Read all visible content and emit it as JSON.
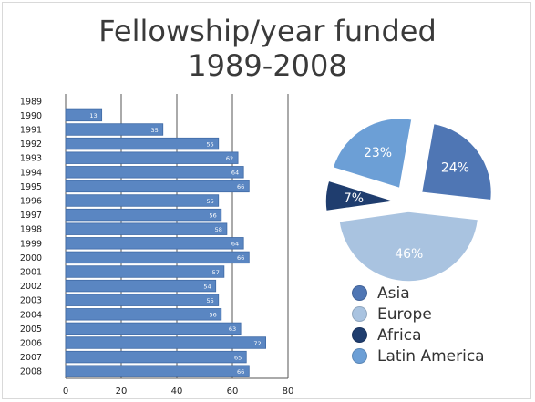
{
  "chart_data": [
    {
      "type": "bar",
      "orientation": "horizontal",
      "title": "Fellowship/year funded",
      "subtitle": "1989-2008",
      "categories": [
        "1989",
        "1990",
        "1991",
        "1992",
        "1993",
        "1994",
        "1995",
        "1996",
        "1997",
        "1998",
        "1999",
        "2000",
        "2001",
        "2002",
        "2003",
        "2004",
        "2005",
        "2006",
        "2007",
        "2008"
      ],
      "values": [
        0,
        13,
        35,
        55,
        62,
        64,
        66,
        55,
        56,
        58,
        64,
        66,
        57,
        54,
        55,
        56,
        63,
        72,
        65,
        66
      ],
      "xticks": [
        0,
        20,
        40,
        60,
        80
      ],
      "xlim": [
        0,
        80
      ],
      "grid": true,
      "bar_color": "#5a86c2",
      "bar_edge": "#3f6aa5"
    },
    {
      "type": "pie",
      "exploded": true,
      "slices": [
        {
          "label": "Asia",
          "value": 24,
          "display": "24%",
          "color": "#4f76b4"
        },
        {
          "label": "Europe",
          "value": 46,
          "display": "46%",
          "color": "#a9c3e0"
        },
        {
          "label": "Africa",
          "value": 7,
          "display": "7%",
          "color": "#1f3d6e"
        },
        {
          "label": "Latin America",
          "value": 23,
          "display": "23%",
          "color": "#6c9fd6"
        }
      ],
      "legend": "bottom-right"
    }
  ]
}
